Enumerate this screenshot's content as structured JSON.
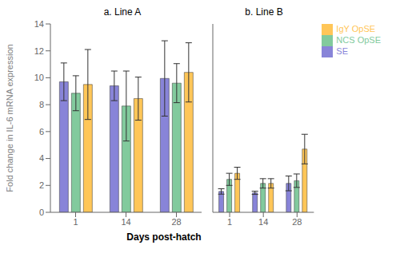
{
  "chart_data": [
    {
      "type": "bar",
      "title": "a.  Line A",
      "xlabel": "Days post-hatch",
      "ylabel": "Fold change in IL-6 mRNA expression",
      "categories": [
        "1",
        "14",
        "28"
      ],
      "series": [
        {
          "name": "SE",
          "values": [
            9.7,
            9.4,
            9.95
          ],
          "errors": [
            1.4,
            1.1,
            2.8
          ]
        },
        {
          "name": "NCS OpSE",
          "values": [
            8.85,
            7.9,
            9.6
          ],
          "errors": [
            1.3,
            2.6,
            1.45
          ]
        },
        {
          "name": "IgY OpSE",
          "values": [
            9.5,
            8.45,
            10.4
          ],
          "errors": [
            2.6,
            1.6,
            2.2
          ]
        }
      ],
      "ylim": [
        0,
        14
      ],
      "yticks": [
        0,
        2,
        4,
        6,
        8,
        10,
        12,
        14
      ],
      "grid": false
    },
    {
      "type": "bar",
      "title": "b.  Line B",
      "categories": [
        "1",
        "14",
        "28"
      ],
      "series": [
        {
          "name": "SE",
          "values": [
            1.55,
            1.45,
            2.15
          ],
          "errors": [
            0.2,
            0.12,
            0.55
          ]
        },
        {
          "name": "NCS OpSE",
          "values": [
            2.45,
            2.15,
            2.35
          ],
          "errors": [
            0.45,
            0.35,
            0.5
          ]
        },
        {
          "name": "IgY OpSE",
          "values": [
            2.9,
            2.15,
            4.7
          ],
          "errors": [
            0.45,
            0.35,
            1.1
          ]
        }
      ],
      "ylim": [
        0,
        14
      ],
      "yticks": [
        0,
        2,
        4,
        6,
        8,
        10,
        12,
        14
      ],
      "grid": false,
      "tick_labels": "x",
      "legend": "right"
    }
  ]
}
